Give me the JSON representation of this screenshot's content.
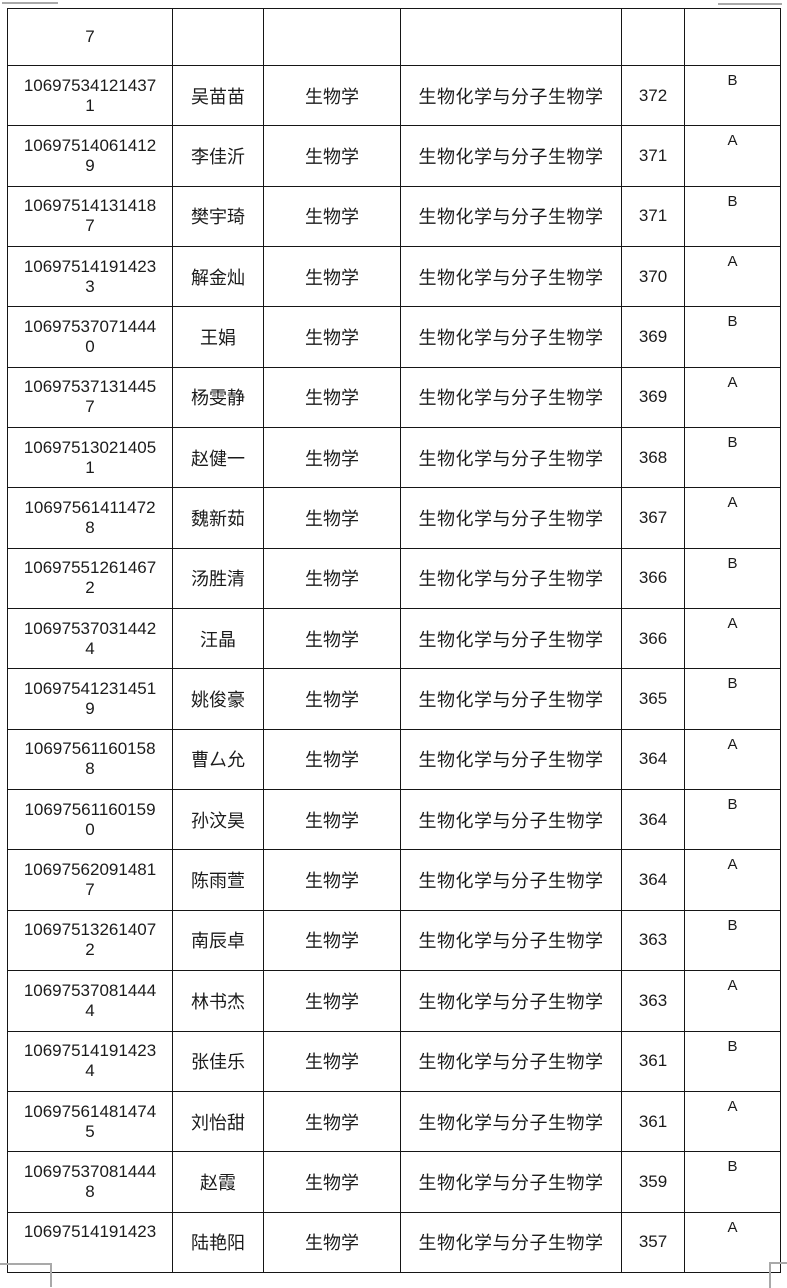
{
  "colors": {
    "background": "#ffffff",
    "table_border": "#161616",
    "text": "#1b1b1b",
    "selection_handle": "#a9a9a9"
  },
  "partial_row": {
    "id_fragment": "7"
  },
  "rows": [
    {
      "id_lines": [
        "10697534121437",
        "1"
      ],
      "name": "吴苗苗",
      "major": "生物学",
      "subject": "生物化学与分子生物学",
      "score": "372",
      "grade": "B"
    },
    {
      "id_lines": [
        "10697514061412",
        "9"
      ],
      "name": "李佳沂",
      "major": "生物学",
      "subject": "生物化学与分子生物学",
      "score": "371",
      "grade": "A"
    },
    {
      "id_lines": [
        "10697514131418",
        "7"
      ],
      "name": "樊宇琦",
      "major": "生物学",
      "subject": "生物化学与分子生物学",
      "score": "371",
      "grade": "B"
    },
    {
      "id_lines": [
        "10697514191423",
        "3"
      ],
      "name": "解金灿",
      "major": "生物学",
      "subject": "生物化学与分子生物学",
      "score": "370",
      "grade": "A"
    },
    {
      "id_lines": [
        "10697537071444",
        "0"
      ],
      "name": "王娟",
      "major": "生物学",
      "subject": "生物化学与分子生物学",
      "score": "369",
      "grade": "B"
    },
    {
      "id_lines": [
        "10697537131445",
        "7"
      ],
      "name": "杨雯静",
      "major": "生物学",
      "subject": "生物化学与分子生物学",
      "score": "369",
      "grade": "A"
    },
    {
      "id_lines": [
        "10697513021405",
        "1"
      ],
      "name": "赵健一",
      "major": "生物学",
      "subject": "生物化学与分子生物学",
      "score": "368",
      "grade": "B"
    },
    {
      "id_lines": [
        "10697561411472",
        "8"
      ],
      "name": "魏新茹",
      "major": "生物学",
      "subject": "生物化学与分子生物学",
      "score": "367",
      "grade": "A"
    },
    {
      "id_lines": [
        "10697551261467",
        "2"
      ],
      "name": "汤胜清",
      "major": "生物学",
      "subject": "生物化学与分子生物学",
      "score": "366",
      "grade": "B"
    },
    {
      "id_lines": [
        "10697537031442",
        "4"
      ],
      "name": "汪晶",
      "major": "生物学",
      "subject": "生物化学与分子生物学",
      "score": "366",
      "grade": "A"
    },
    {
      "id_lines": [
        "10697541231451",
        "9"
      ],
      "name": "姚俊豪",
      "major": "生物学",
      "subject": "生物化学与分子生物学",
      "score": "365",
      "grade": "B"
    },
    {
      "id_lines": [
        "10697561160158",
        "8"
      ],
      "name": "曹厶允",
      "major": "生物学",
      "subject": "生物化学与分子生物学",
      "score": "364",
      "grade": "A"
    },
    {
      "id_lines": [
        "10697561160159",
        "0"
      ],
      "name": "孙汶昊",
      "major": "生物学",
      "subject": "生物化学与分子生物学",
      "score": "364",
      "grade": "B"
    },
    {
      "id_lines": [
        "10697562091481",
        "7"
      ],
      "name": "陈雨萱",
      "major": "生物学",
      "subject": "生物化学与分子生物学",
      "score": "364",
      "grade": "A"
    },
    {
      "id_lines": [
        "10697513261407",
        "2"
      ],
      "name": "南辰卓",
      "major": "生物学",
      "subject": "生物化学与分子生物学",
      "score": "363",
      "grade": "B"
    },
    {
      "id_lines": [
        "10697537081444",
        "4"
      ],
      "name": "林书杰",
      "major": "生物学",
      "subject": "生物化学与分子生物学",
      "score": "363",
      "grade": "A"
    },
    {
      "id_lines": [
        "10697514191423",
        "4"
      ],
      "name": "张佳乐",
      "major": "生物学",
      "subject": "生物化学与分子生物学",
      "score": "361",
      "grade": "B"
    },
    {
      "id_lines": [
        "10697561481474",
        "5"
      ],
      "name": "刘怡甜",
      "major": "生物学",
      "subject": "生物化学与分子生物学",
      "score": "361",
      "grade": "A"
    },
    {
      "id_lines": [
        "10697537081444",
        "8"
      ],
      "name": "赵霞",
      "major": "生物学",
      "subject": "生物化学与分子生物学",
      "score": "359",
      "grade": "B"
    },
    {
      "id_lines": [
        "10697514191423",
        ""
      ],
      "name": "陆艳阳",
      "major": "生物学",
      "subject": "生物化学与分子生物学",
      "score": "357",
      "grade": "A"
    }
  ]
}
